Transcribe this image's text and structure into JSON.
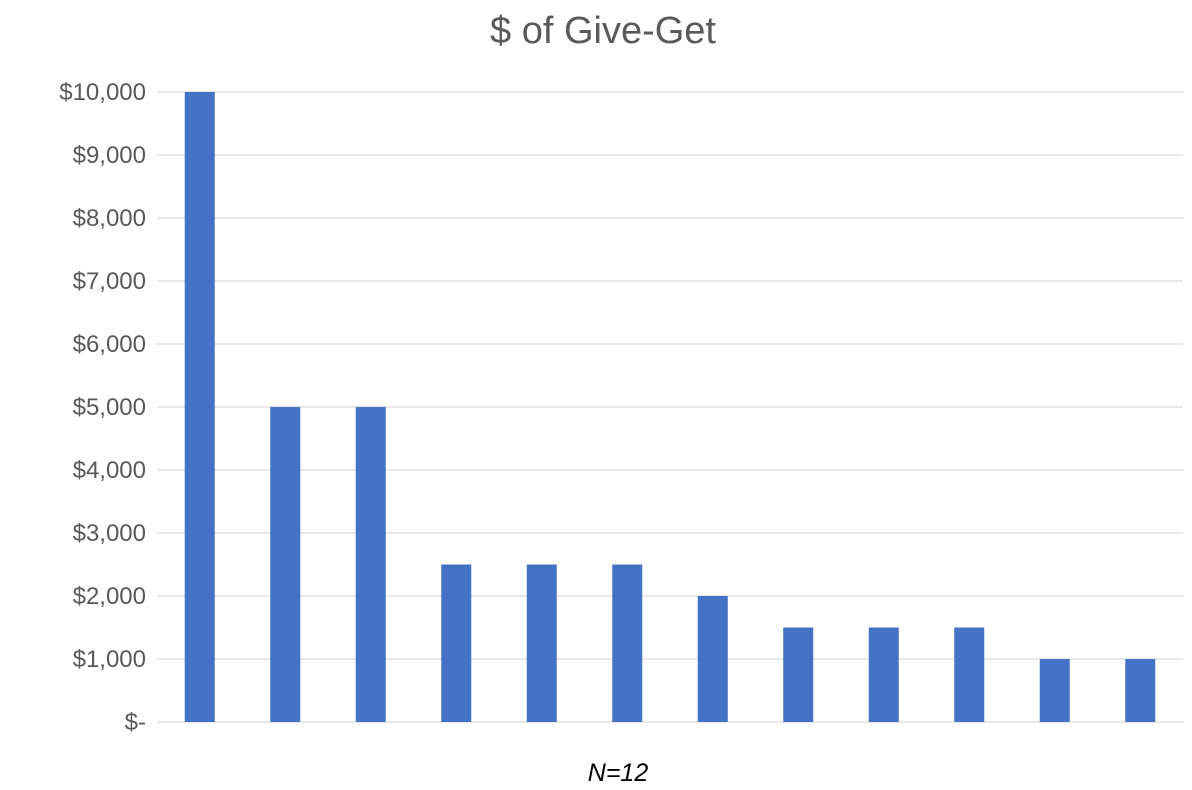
{
  "chart_data": {
    "type": "bar",
    "title": "$ of Give-Get",
    "xlabel": "N=12",
    "ylabel": "",
    "categories": [
      "",
      "",
      "",
      "",
      "",
      "",
      "",
      "",
      "",
      "",
      "",
      ""
    ],
    "values": [
      10000,
      5000,
      5000,
      2500,
      2500,
      2500,
      2000,
      1500,
      1500,
      1500,
      1000,
      1000
    ],
    "ylim": [
      0,
      10000
    ],
    "yticks": [
      0,
      1000,
      2000,
      3000,
      4000,
      5000,
      6000,
      7000,
      8000,
      9000,
      10000
    ],
    "ytick_labels": [
      "$-",
      "$1,000",
      "$2,000",
      "$3,000",
      "$4,000",
      "$5,000",
      "$6,000",
      "$7,000",
      "$8,000",
      "$9,000",
      "$10,000"
    ],
    "grid": true,
    "legend": "none",
    "colors": {
      "bar": "#4472c4",
      "grid": "#d9d9d9",
      "title": "#595959",
      "tick": "#595959",
      "xlabel": "#000000"
    }
  }
}
